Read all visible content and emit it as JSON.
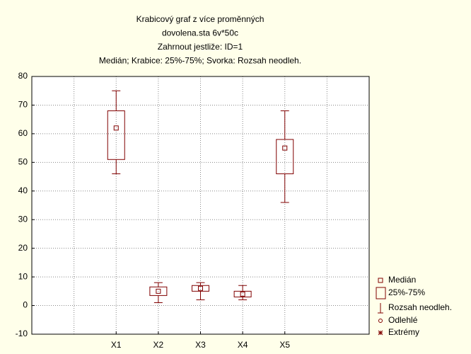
{
  "chart_data": {
    "type": "box",
    "title": [
      "Krabicový graf z více proměnných",
      "dovolena.sta 6v*50c",
      "Zahrnout jestliže: ID=1",
      "Medián; Krabice: 25%-75%; Svorka: Rozsah neodleh."
    ],
    "categories": [
      "X1",
      "X2",
      "X3",
      "X4",
      "X5"
    ],
    "boxes": [
      {
        "min": 46,
        "q1": 51,
        "median": 62,
        "q3": 68,
        "max": 75
      },
      {
        "min": 1,
        "q1": 3.5,
        "median": 5,
        "q3": 6.5,
        "max": 8
      },
      {
        "min": 2,
        "q1": 5,
        "median": 6,
        "q3": 7,
        "max": 8
      },
      {
        "min": 2,
        "q1": 3,
        "median": 4,
        "q3": 5,
        "max": 7
      },
      {
        "min": 36,
        "q1": 46,
        "median": 55,
        "q3": 58,
        "max": 68
      }
    ],
    "color": "#800000",
    "ylim": [
      -10,
      80
    ],
    "yticks": [
      -10,
      0,
      10,
      20,
      30,
      40,
      50,
      60,
      70,
      80
    ],
    "grid": true,
    "legend": [
      "Medián",
      "25%-75%",
      "Rozsah neodleh.",
      "Odlehlé",
      "Extrémy"
    ],
    "legend_position": "lower right"
  }
}
